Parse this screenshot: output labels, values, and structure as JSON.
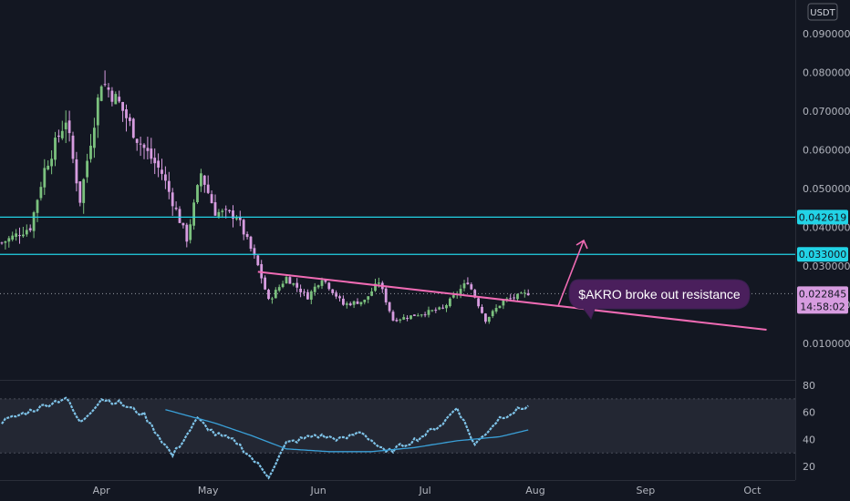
{
  "currency_label": "USDT",
  "colors": {
    "background": "#131722",
    "up": "#7bc17e",
    "down": "#d79ce0",
    "level_line": "#22d3e6",
    "trendline": "#f06bb4",
    "note_bg": "#4a1f5c",
    "rsi_line": "#7fc3e8",
    "rsi_ma": "#3aa0d8",
    "rsi_band": "#2a2e39",
    "grid": "#1e222d"
  },
  "chart_data": [
    {
      "type": "candlestick",
      "title": "",
      "y_axis_ticks": [
        "0.010000",
        "0.020000",
        "0.030000",
        "0.040000",
        "0.050000",
        "0.060000",
        "0.070000",
        "0.080000",
        "0.090000"
      ],
      "ylim": [
        0.0055,
        0.095
      ],
      "x_axis_ticks": [
        "Apr",
        "May",
        "Jun",
        "Jul",
        "Aug",
        "Sep",
        "Oct"
      ],
      "horizontal_levels": [
        {
          "value": 0.042619,
          "label": "0.042619"
        },
        {
          "value": 0.033,
          "label": "0.033000"
        }
      ],
      "current_price": {
        "value": 0.022845,
        "label": "0.022845",
        "countdown": "14:58:02"
      },
      "trendline": {
        "from": {
          "day": 72,
          "price": 0.0285
        },
        "to": {
          "day": 215,
          "price": 0.0135
        }
      },
      "annotation": {
        "text": "$AKRO broke out resistance"
      },
      "keypoints": [
        {
          "day": 0,
          "price": 0.036
        },
        {
          "day": 8,
          "price": 0.04
        },
        {
          "day": 12,
          "price": 0.055
        },
        {
          "day": 18,
          "price": 0.068
        },
        {
          "day": 22,
          "price": 0.047
        },
        {
          "day": 28,
          "price": 0.078
        },
        {
          "day": 33,
          "price": 0.072
        },
        {
          "day": 38,
          "price": 0.063
        },
        {
          "day": 45,
          "price": 0.054
        },
        {
          "day": 52,
          "price": 0.037
        },
        {
          "day": 56,
          "price": 0.054
        },
        {
          "day": 60,
          "price": 0.044
        },
        {
          "day": 66,
          "price": 0.043
        },
        {
          "day": 72,
          "price": 0.03
        },
        {
          "day": 75,
          "price": 0.021
        },
        {
          "day": 80,
          "price": 0.027
        },
        {
          "day": 86,
          "price": 0.022
        },
        {
          "day": 90,
          "price": 0.027
        },
        {
          "day": 96,
          "price": 0.02
        },
        {
          "day": 102,
          "price": 0.021
        },
        {
          "day": 106,
          "price": 0.026
        },
        {
          "day": 110,
          "price": 0.016
        },
        {
          "day": 124,
          "price": 0.019
        },
        {
          "day": 131,
          "price": 0.026
        },
        {
          "day": 136,
          "price": 0.016
        },
        {
          "day": 141,
          "price": 0.021
        },
        {
          "day": 148,
          "price": 0.023
        }
      ]
    },
    {
      "type": "line",
      "title": "",
      "y_axis_ticks": [
        "20",
        "40",
        "60",
        "80"
      ],
      "ylim": [
        12,
        82
      ],
      "band": [
        30,
        70
      ],
      "keypoints": [
        {
          "day": 0,
          "value": 53
        },
        {
          "day": 8,
          "value": 61
        },
        {
          "day": 18,
          "value": 71
        },
        {
          "day": 22,
          "value": 52
        },
        {
          "day": 28,
          "value": 70
        },
        {
          "day": 33,
          "value": 67
        },
        {
          "day": 40,
          "value": 58
        },
        {
          "day": 48,
          "value": 28
        },
        {
          "day": 55,
          "value": 55
        },
        {
          "day": 60,
          "value": 44
        },
        {
          "day": 66,
          "value": 38
        },
        {
          "day": 75,
          "value": 13
        },
        {
          "day": 80,
          "value": 37
        },
        {
          "day": 88,
          "value": 43
        },
        {
          "day": 96,
          "value": 40
        },
        {
          "day": 101,
          "value": 46
        },
        {
          "day": 108,
          "value": 30
        },
        {
          "day": 118,
          "value": 42
        },
        {
          "day": 124,
          "value": 52
        },
        {
          "day": 128,
          "value": 64
        },
        {
          "day": 133,
          "value": 36
        },
        {
          "day": 140,
          "value": 56
        },
        {
          "day": 148,
          "value": 65
        }
      ],
      "ma_keypoints": [
        {
          "day": 46,
          "value": 62
        },
        {
          "day": 60,
          "value": 52
        },
        {
          "day": 70,
          "value": 43
        },
        {
          "day": 80,
          "value": 33
        },
        {
          "day": 92,
          "value": 31
        },
        {
          "day": 104,
          "value": 31
        },
        {
          "day": 116,
          "value": 34
        },
        {
          "day": 128,
          "value": 39
        },
        {
          "day": 140,
          "value": 42
        },
        {
          "day": 148,
          "value": 47
        }
      ]
    }
  ]
}
